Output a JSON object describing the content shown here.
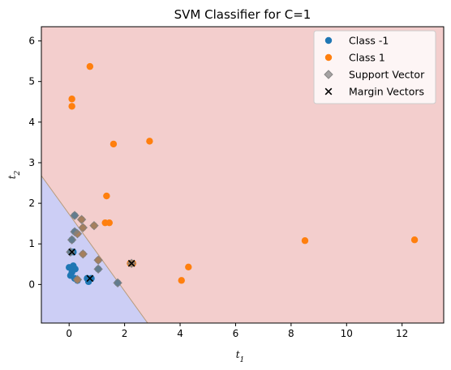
{
  "chart_data": {
    "type": "scatter",
    "title": "SVM Classifier for C=1",
    "xlabel": "t",
    "xlabel_sub": "1",
    "ylabel": "t",
    "ylabel_sub": "2",
    "xlim": [
      -1,
      13.5
    ],
    "ylim": [
      -0.95,
      6.35
    ],
    "xticks": [
      0,
      2,
      4,
      6,
      8,
      10,
      12
    ],
    "yticks": [
      0,
      1,
      2,
      3,
      4,
      5,
      6
    ],
    "grid": false,
    "legend_position": "top-right",
    "regions": {
      "class_neg_color": "#cccef5",
      "class_pos_color": "#f3cecd",
      "boundary_color": "#b79b7c",
      "boundary_line": [
        [
          -1,
          2.68
        ],
        [
          2.83,
          -0.95
        ]
      ]
    },
    "series": [
      {
        "name": "Class -1",
        "marker": "circle",
        "color": "#1f77b4",
        "points": [
          [
            0.2,
            1.7
          ],
          [
            0.2,
            1.3
          ],
          [
            0.1,
            1.1
          ],
          [
            0.05,
            0.8
          ],
          [
            0.15,
            0.8
          ],
          [
            0.0,
            0.42
          ],
          [
            0.15,
            0.46
          ],
          [
            0.22,
            0.38
          ],
          [
            0.1,
            0.3
          ],
          [
            0.05,
            0.22
          ],
          [
            0.2,
            0.15
          ],
          [
            0.3,
            0.1
          ],
          [
            0.65,
            0.15
          ],
          [
            0.7,
            0.07
          ],
          [
            0.8,
            0.15
          ],
          [
            1.05,
            0.38
          ],
          [
            1.75,
            0.04
          ]
        ]
      },
      {
        "name": "Class 1",
        "marker": "circle",
        "color": "#ff7f0e",
        "points": [
          [
            0.75,
            5.37
          ],
          [
            0.1,
            4.57
          ],
          [
            0.1,
            4.39
          ],
          [
            1.6,
            3.46
          ],
          [
            2.9,
            3.53
          ],
          [
            1.35,
            2.18
          ],
          [
            1.3,
            1.52
          ],
          [
            1.45,
            1.52
          ],
          [
            0.45,
            1.6
          ],
          [
            0.5,
            1.4
          ],
          [
            0.9,
            1.45
          ],
          [
            0.3,
            1.25
          ],
          [
            0.5,
            0.75
          ],
          [
            1.05,
            0.6
          ],
          [
            2.2,
            0.52
          ],
          [
            2.3,
            0.52
          ],
          [
            0.3,
            0.12
          ],
          [
            4.3,
            0.43
          ],
          [
            4.05,
            0.1
          ],
          [
            8.5,
            1.08
          ],
          [
            12.45,
            1.1
          ]
        ]
      },
      {
        "name": "Support Vector",
        "marker": "diamond",
        "color": "#7f7f7f",
        "points": [
          [
            0.2,
            1.7
          ],
          [
            0.2,
            1.3
          ],
          [
            0.1,
            1.1
          ],
          [
            0.05,
            0.8
          ],
          [
            1.05,
            0.38
          ],
          [
            1.75,
            0.04
          ],
          [
            0.45,
            1.6
          ],
          [
            0.5,
            1.4
          ],
          [
            0.9,
            1.45
          ],
          [
            0.3,
            1.25
          ],
          [
            0.5,
            0.75
          ],
          [
            1.05,
            0.6
          ],
          [
            0.3,
            0.12
          ],
          [
            2.25,
            0.52
          ]
        ]
      },
      {
        "name": "Margin Vectors",
        "marker": "x",
        "color": "#000000",
        "points": [
          [
            0.1,
            0.8
          ],
          [
            0.75,
            0.15
          ],
          [
            2.25,
            0.52
          ]
        ]
      }
    ]
  }
}
